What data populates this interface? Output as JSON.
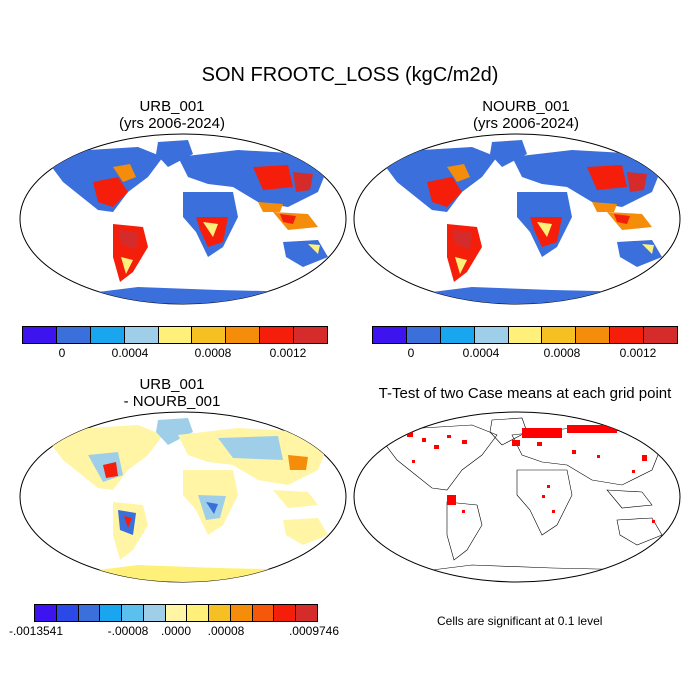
{
  "title": "SON FROOTC_LOSS (kgC/m2d)",
  "panels": [
    {
      "line1": "URB_001",
      "line2": "(yrs 2006-2024)"
    },
    {
      "line1": "NOURB_001",
      "line2": "(yrs 2006-2024)"
    },
    {
      "line1": "URB_001",
      "line2": "- NOURB_001"
    },
    {
      "line1": "T-Test of two Case means at each grid point",
      "line2": ""
    }
  ],
  "colorbar_main": {
    "colors": [
      "#3d14f0",
      "#3b6fdc",
      "#1aa6ee",
      "#9fcfe8",
      "#fff07a",
      "#f5c023",
      "#f58d0b",
      "#f51e0b",
      "#d62b2b"
    ],
    "ticks": [
      "0",
      "0.0004",
      "0.0008",
      "0.0012"
    ]
  },
  "colorbar_diff": {
    "colors": [
      "#3d14f0",
      "#2a49e8",
      "#3b6fdc",
      "#1aa6ee",
      "#5cc0ee",
      "#9fcfe8",
      "#fff5a5",
      "#fff07a",
      "#f5c023",
      "#f58d0b",
      "#f5580b",
      "#f51e0b",
      "#d62b2b"
    ],
    "ticks": [
      "-.0013541",
      "-.00008",
      ".0000",
      ".00008",
      ".0009746"
    ]
  },
  "note": "Cells are significant at 0.1 level"
}
